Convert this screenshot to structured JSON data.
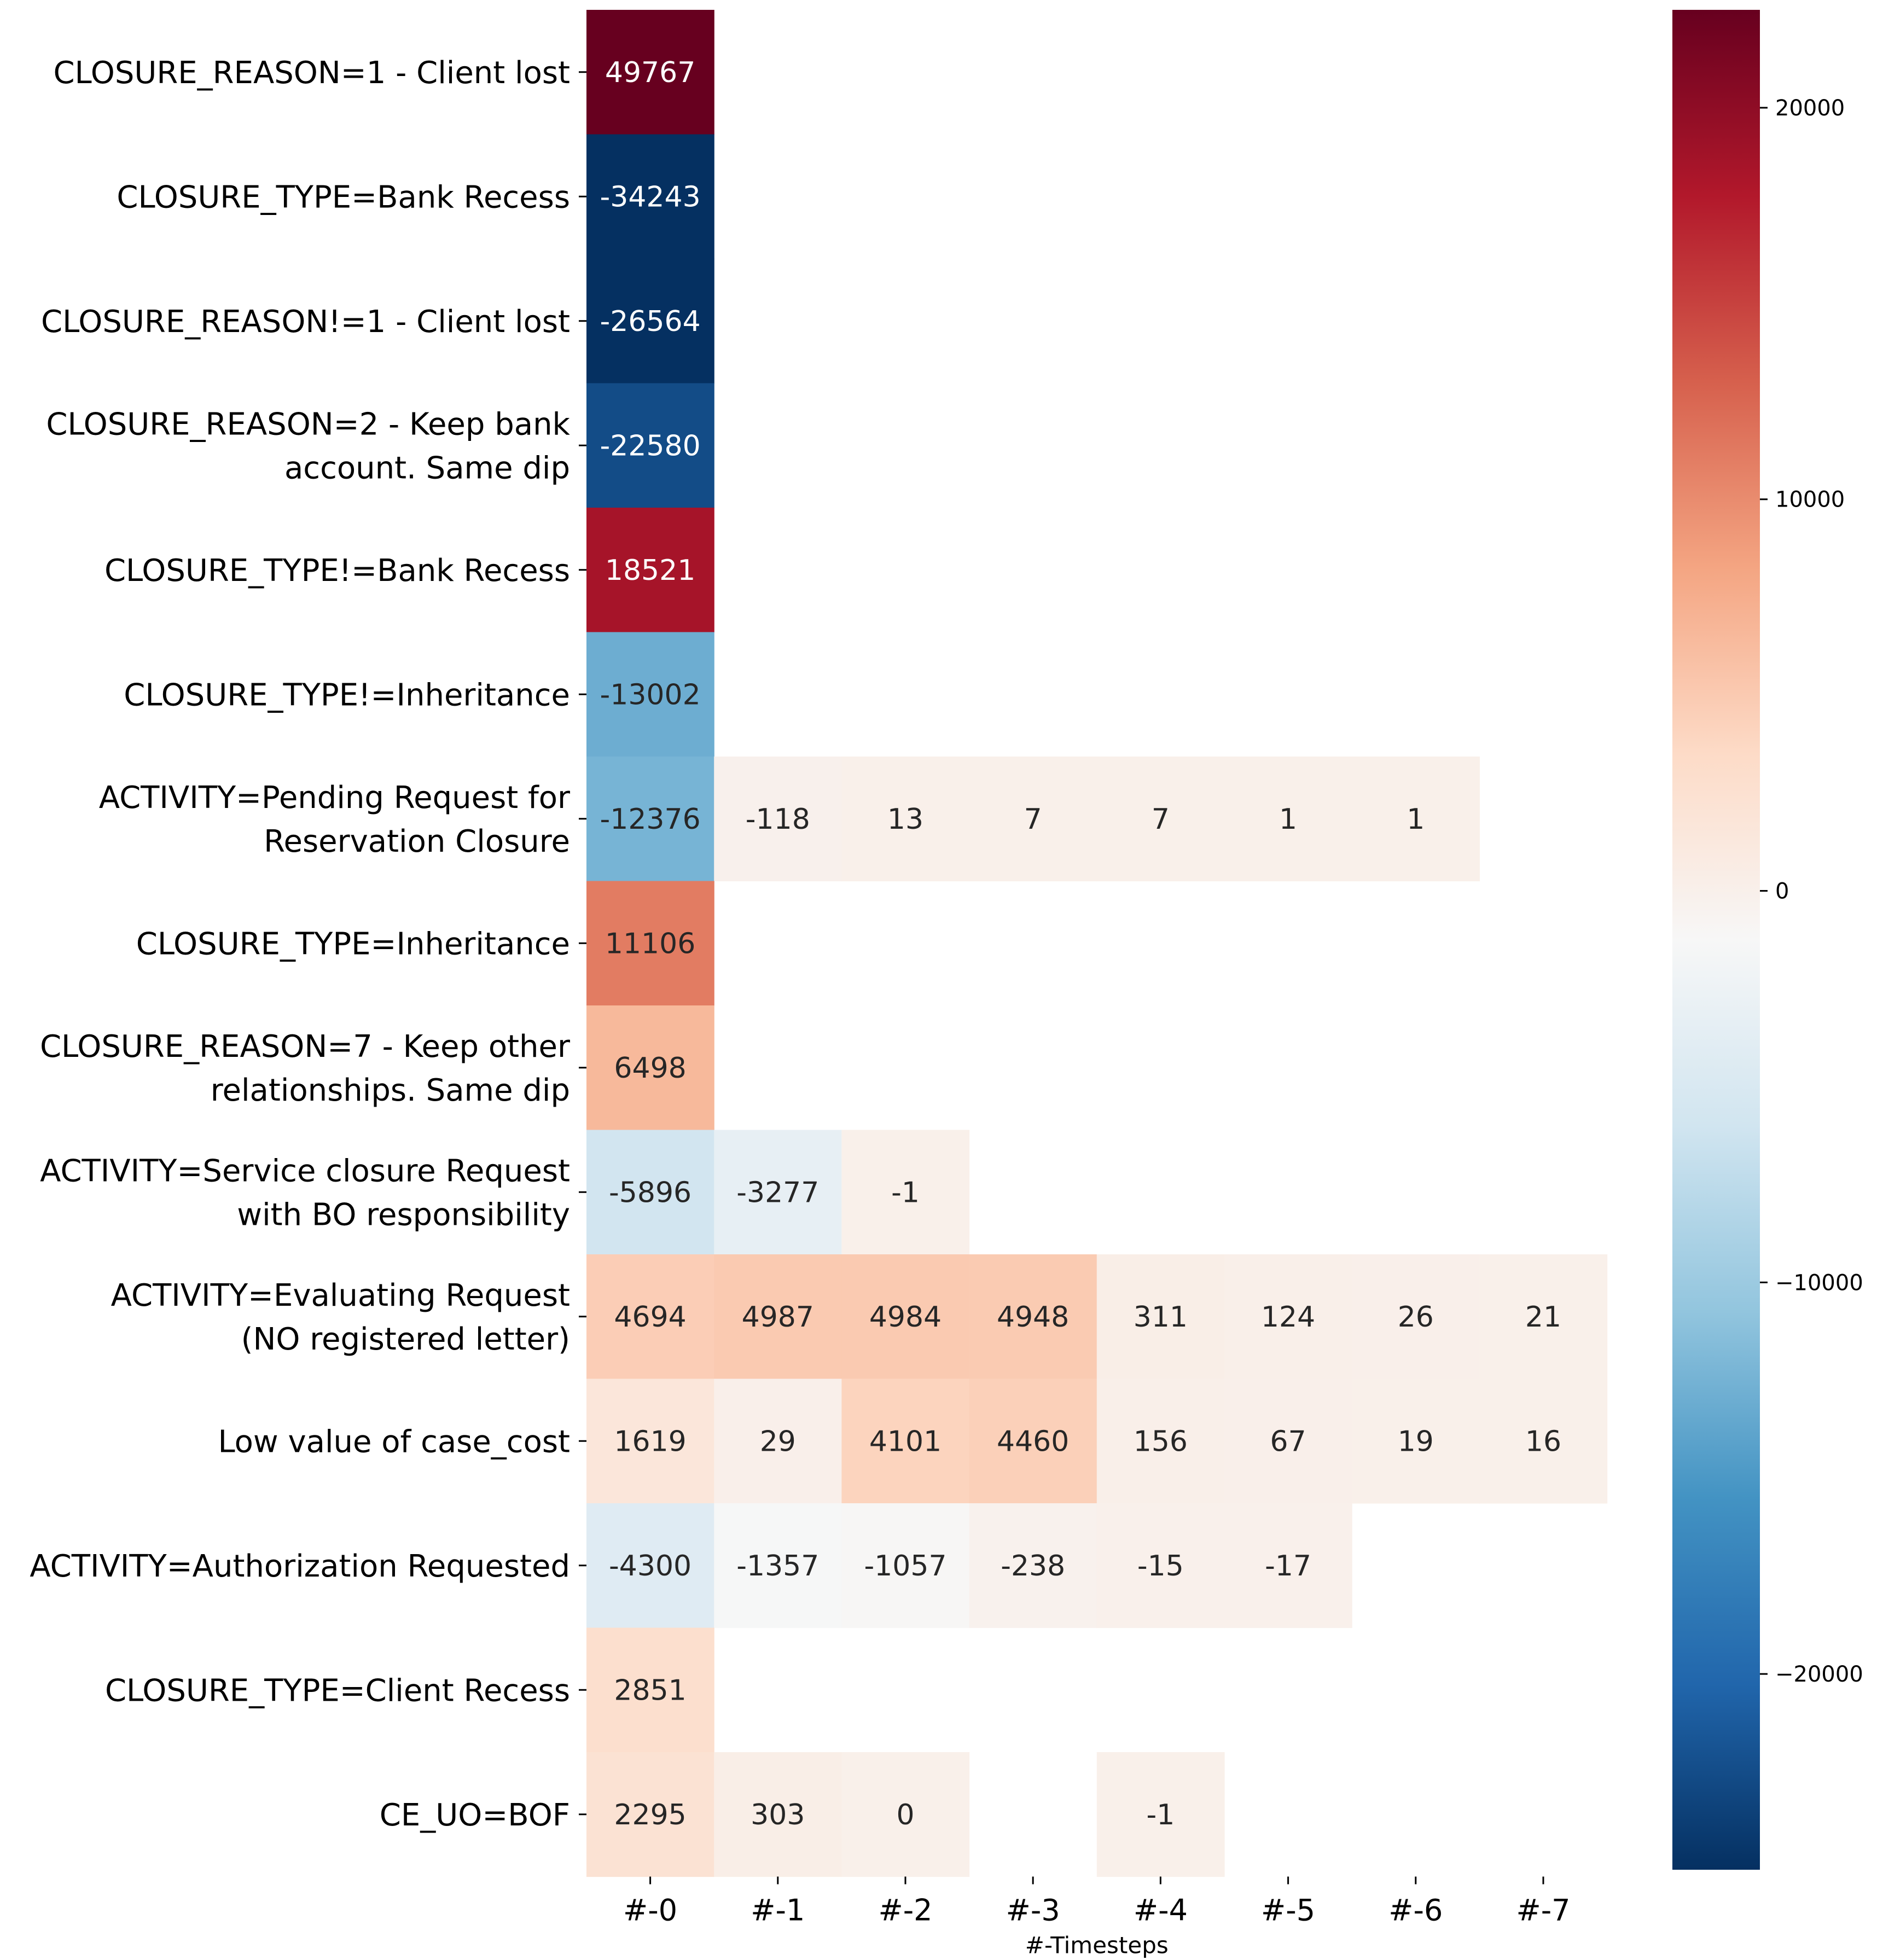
{
  "chart_data": {
    "type": "heatmap",
    "xlabel": "#-Timesteps",
    "x_categories": [
      "#-0",
      "#-1",
      "#-2",
      "#-3",
      "#-4",
      "#-5",
      "#-6",
      "#-7"
    ],
    "y_categories": [
      [
        "CLOSURE_REASON=1 - Client lost"
      ],
      [
        "CLOSURE_TYPE=Bank Recess"
      ],
      [
        "CLOSURE_REASON!=1 - Client lost"
      ],
      [
        "CLOSURE_REASON=2 - Keep bank",
        "account. Same dip"
      ],
      [
        "CLOSURE_TYPE!=Bank Recess"
      ],
      [
        "CLOSURE_TYPE!=Inheritance"
      ],
      [
        "ACTIVITY=Pending Request for",
        "Reservation Closure"
      ],
      [
        "CLOSURE_TYPE=Inheritance"
      ],
      [
        "CLOSURE_REASON=7 - Keep other",
        "relationships. Same dip"
      ],
      [
        "ACTIVITY=Service closure Request",
        "with BO responsibility"
      ],
      [
        "ACTIVITY=Evaluating Request",
        "(NO registered letter)"
      ],
      [
        "Low value of case_cost"
      ],
      [
        "ACTIVITY=Authorization Requested"
      ],
      [
        "CLOSURE_TYPE=Client Recess"
      ],
      [
        "CE_UO=BOF"
      ]
    ],
    "values": [
      [
        49767,
        null,
        null,
        null,
        null,
        null,
        null,
        null
      ],
      [
        -34243,
        null,
        null,
        null,
        null,
        null,
        null,
        null
      ],
      [
        -26564,
        null,
        null,
        null,
        null,
        null,
        null,
        null
      ],
      [
        -22580,
        null,
        null,
        null,
        null,
        null,
        null,
        null
      ],
      [
        18521,
        null,
        null,
        null,
        null,
        null,
        null,
        null
      ],
      [
        -13002,
        null,
        null,
        null,
        null,
        null,
        null,
        null
      ],
      [
        -12376,
        -118,
        13,
        7,
        7,
        1,
        1,
        null
      ],
      [
        11106,
        null,
        null,
        null,
        null,
        null,
        null,
        null
      ],
      [
        6498,
        null,
        null,
        null,
        null,
        null,
        null,
        null
      ],
      [
        -5896,
        -3277,
        -1,
        null,
        null,
        null,
        null,
        null
      ],
      [
        4694,
        4987,
        4984,
        4948,
        311,
        124,
        26,
        21
      ],
      [
        1619,
        29,
        4101,
        4460,
        156,
        67,
        19,
        16
      ],
      [
        -4300,
        -1357,
        -1057,
        -238,
        -15,
        -17,
        null,
        null
      ],
      [
        2851,
        null,
        null,
        null,
        null,
        null,
        null,
        null
      ],
      [
        2295,
        303,
        0,
        null,
        -1,
        null,
        null,
        null
      ]
    ],
    "colormap": "RdBu_r",
    "vmin": -25000,
    "vmax": 22500,
    "colorbar_ticks": [
      20000,
      10000,
      0,
      -10000,
      -20000
    ],
    "colorbar_tick_labels": [
      "20000",
      "10000",
      "0",
      "−10000",
      "−20000"
    ],
    "grid": false,
    "legend": "colorbar-right"
  }
}
